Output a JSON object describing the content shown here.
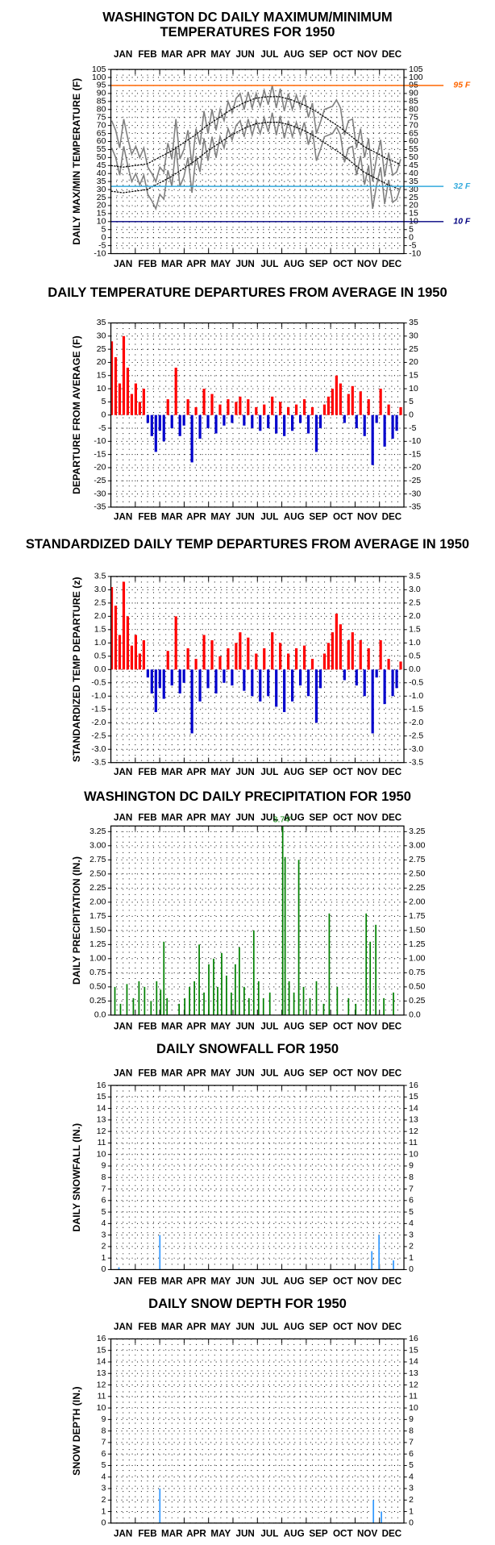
{
  "months": [
    "JAN",
    "FEB",
    "MAR",
    "APR",
    "MAY",
    "JUN",
    "JUL",
    "AUG",
    "SEP",
    "OCT",
    "NOV",
    "DEC"
  ],
  "chart_data": [
    {
      "type": "line",
      "title": [
        "WASHINGTON DC DAILY MAXIMUM/MINIMUM",
        "TEMPERATURES FOR 1950"
      ],
      "ylabel": "DAILY MAX/MIN TEMPERATURE (F)",
      "month_labels": [
        "top",
        "bottom"
      ],
      "xlim": [
        0,
        365
      ],
      "ylim": [
        -10,
        105
      ],
      "yticks": [
        -10,
        -5,
        0,
        5,
        10,
        15,
        20,
        25,
        30,
        35,
        40,
        45,
        50,
        55,
        60,
        65,
        70,
        75,
        80,
        85,
        90,
        95,
        100,
        105
      ],
      "ref_lines": [
        {
          "value": 95,
          "label": "95 F",
          "color": "#ff6600"
        },
        {
          "value": 32,
          "label": "32 F",
          "color": "#33aadd"
        },
        {
          "value": 10,
          "label": "10 F",
          "color": "#000080"
        }
      ],
      "series": [
        {
          "name": "max",
          "color": "#808080",
          "x": [
            1,
            6,
            11,
            16,
            21,
            26,
            31,
            36,
            41,
            46,
            51,
            56,
            61,
            66,
            71,
            76,
            81,
            86,
            91,
            96,
            101,
            106,
            111,
            116,
            121,
            126,
            131,
            136,
            141,
            146,
            151,
            156,
            161,
            166,
            171,
            176,
            181,
            186,
            191,
            196,
            201,
            206,
            211,
            216,
            221,
            226,
            231,
            236,
            241,
            246,
            251,
            256,
            261,
            266,
            271,
            276,
            281,
            286,
            291,
            296,
            301,
            306,
            311,
            316,
            321,
            326,
            331,
            336,
            341,
            346,
            351,
            356,
            361
          ],
          "values": [
            73,
            67,
            56,
            74,
            62,
            52,
            57,
            50,
            56,
            44,
            40,
            35,
            44,
            41,
            59,
            49,
            74,
            49,
            55,
            67,
            45,
            68,
            58,
            79,
            65,
            80,
            67,
            80,
            73,
            85,
            78,
            87,
            90,
            80,
            91,
            81,
            90,
            82,
            92,
            83,
            95,
            81,
            93,
            79,
            90,
            80,
            89,
            81,
            89,
            75,
            84,
            65,
            72,
            80,
            81,
            82,
            86,
            81,
            64,
            73,
            74,
            56,
            68,
            50,
            62,
            35,
            50,
            61,
            38,
            53,
            39,
            41,
            49
          ]
        },
        {
          "name": "min",
          "color": "#808080",
          "x": [
            1,
            6,
            11,
            16,
            21,
            26,
            31,
            36,
            41,
            46,
            51,
            56,
            61,
            66,
            71,
            76,
            81,
            86,
            91,
            96,
            101,
            106,
            111,
            116,
            121,
            126,
            131,
            136,
            141,
            146,
            151,
            156,
            161,
            166,
            171,
            176,
            181,
            186,
            191,
            196,
            201,
            206,
            211,
            216,
            221,
            226,
            231,
            236,
            241,
            246,
            251,
            256,
            261,
            266,
            271,
            276,
            281,
            286,
            291,
            296,
            301,
            306,
            311,
            316,
            321,
            326,
            331,
            336,
            341,
            346,
            351,
            356,
            361
          ],
          "values": [
            56,
            50,
            39,
            57,
            45,
            35,
            40,
            33,
            39,
            27,
            23,
            18,
            27,
            24,
            42,
            32,
            57,
            32,
            38,
            50,
            28,
            51,
            41,
            62,
            48,
            63,
            50,
            63,
            56,
            68,
            61,
            70,
            73,
            63,
            74,
            64,
            73,
            65,
            75,
            66,
            78,
            64,
            76,
            62,
            73,
            63,
            72,
            64,
            72,
            58,
            67,
            48,
            55,
            63,
            64,
            65,
            69,
            64,
            47,
            56,
            57,
            39,
            51,
            33,
            45,
            18,
            33,
            44,
            21,
            36,
            22,
            24,
            32
          ]
        },
        {
          "name": "normal max",
          "color": "#000000",
          "x": [
            0,
            15,
            30,
            45,
            60,
            75,
            90,
            105,
            120,
            135,
            150,
            165,
            180,
            195,
            210,
            225,
            240,
            255,
            270,
            285,
            300,
            315,
            330,
            345,
            360
          ],
          "values": [
            45,
            44,
            45,
            46,
            50,
            54,
            59,
            64,
            70,
            75,
            80,
            84,
            87,
            88,
            88,
            86,
            83,
            79,
            74,
            69,
            63,
            57,
            53,
            49,
            46
          ]
        },
        {
          "name": "normal min",
          "color": "#000000",
          "x": [
            0,
            15,
            30,
            45,
            60,
            75,
            90,
            105,
            120,
            135,
            150,
            165,
            180,
            195,
            210,
            225,
            240,
            255,
            270,
            285,
            300,
            315,
            330,
            345,
            360
          ],
          "values": [
            29,
            28,
            29,
            30,
            34,
            38,
            43,
            48,
            54,
            59,
            64,
            68,
            71,
            72,
            72,
            70,
            67,
            63,
            58,
            53,
            47,
            41,
            37,
            33,
            30
          ]
        }
      ]
    },
    {
      "type": "bar",
      "title": "DAILY TEMPERATURE DEPARTURES FROM AVERAGE IN 1950",
      "ylabel": "DEPARTURE FROM AVERAGE (F)",
      "month_labels": [
        "bottom"
      ],
      "xlim": [
        0,
        365
      ],
      "ylim": [
        -35,
        35
      ],
      "yticks": [
        -35,
        -30,
        -25,
        -20,
        -15,
        -10,
        -5,
        0,
        5,
        10,
        15,
        20,
        25,
        30,
        35
      ],
      "pos_color": "#ff0000",
      "neg_color": "#0000cc",
      "x": [
        1,
        6,
        11,
        16,
        21,
        26,
        31,
        36,
        41,
        46,
        51,
        56,
        61,
        66,
        71,
        76,
        81,
        86,
        91,
        96,
        101,
        106,
        111,
        116,
        121,
        126,
        131,
        136,
        141,
        146,
        151,
        156,
        161,
        166,
        171,
        176,
        181,
        186,
        191,
        196,
        201,
        206,
        211,
        216,
        221,
        226,
        231,
        236,
        241,
        246,
        251,
        256,
        261,
        266,
        271,
        276,
        281,
        286,
        291,
        296,
        301,
        306,
        311,
        316,
        321,
        326,
        331,
        336,
        341,
        346,
        351,
        356,
        361
      ],
      "values": [
        28,
        22,
        12,
        30,
        18,
        8,
        12,
        5,
        10,
        -3,
        -8,
        -14,
        -6,
        -10,
        6,
        -5,
        18,
        -8,
        -4,
        6,
        -18,
        3,
        -9,
        10,
        -5,
        8,
        -7,
        4,
        -4,
        6,
        -3,
        5,
        7,
        -4,
        6,
        -5,
        3,
        -6,
        4,
        -5,
        7,
        -7,
        5,
        -8,
        3,
        -6,
        4,
        -3,
        6,
        -7,
        3,
        -14,
        -5,
        4,
        7,
        10,
        15,
        12,
        -3,
        8,
        11,
        -5,
        9,
        -8,
        6,
        -19,
        -3,
        10,
        -12,
        4,
        -9,
        -6,
        3
      ]
    },
    {
      "type": "bar",
      "title": "STANDARDIZED DAILY TEMP DEPARTURES FROM AVERAGE IN 1950",
      "ylabel": "STANDARDIZED TEMP DEPARTURE (z)",
      "month_labels": [
        "bottom"
      ],
      "xlim": [
        0,
        365
      ],
      "ylim": [
        -3.5,
        3.5
      ],
      "yticks": [
        -3.5,
        {
          "value": -3,
          "label": "-3.0"
        },
        -2.5,
        {
          "value": -2,
          "label": "-2.0"
        },
        -1.5,
        {
          "value": -1,
          "label": "-1.0"
        },
        -0.5,
        {
          "value": 0,
          "label": "0.0"
        },
        0.5,
        {
          "value": 1,
          "label": "1.0"
        },
        1.5,
        {
          "value": 2,
          "label": "2.0"
        },
        2.5,
        {
          "value": 3,
          "label": "3.0"
        },
        3.5
      ],
      "pos_color": "#ff0000",
      "neg_color": "#0000cc",
      "x": [
        1,
        6,
        11,
        16,
        21,
        26,
        31,
        36,
        41,
        46,
        51,
        56,
        61,
        66,
        71,
        76,
        81,
        86,
        91,
        96,
        101,
        106,
        111,
        116,
        121,
        126,
        131,
        136,
        141,
        146,
        151,
        156,
        161,
        166,
        171,
        176,
        181,
        186,
        191,
        196,
        201,
        206,
        211,
        216,
        221,
        226,
        231,
        236,
        241,
        246,
        251,
        256,
        261,
        266,
        271,
        276,
        281,
        286,
        291,
        296,
        301,
        306,
        311,
        316,
        321,
        326,
        331,
        336,
        341,
        346,
        351,
        356,
        361
      ],
      "values": [
        3.1,
        2.4,
        1.3,
        3.3,
        2.0,
        0.9,
        1.3,
        0.6,
        1.1,
        -0.3,
        -0.9,
        -1.6,
        -0.7,
        -1.1,
        0.7,
        -0.6,
        2.0,
        -0.9,
        -0.5,
        0.8,
        -2.4,
        0.4,
        -1.2,
        1.3,
        -0.7,
        1.1,
        -0.9,
        0.5,
        -0.5,
        0.8,
        -0.6,
        1.0,
        1.4,
        -0.8,
        1.2,
        -1.0,
        0.6,
        -1.2,
        0.8,
        -1.0,
        1.4,
        -1.4,
        1.0,
        -1.6,
        0.6,
        -1.2,
        0.8,
        -0.6,
        0.9,
        -1.0,
        0.4,
        -2.0,
        -0.7,
        0.6,
        1.0,
        1.4,
        2.1,
        1.7,
        -0.4,
        1.1,
        1.4,
        -0.6,
        1.1,
        -1.0,
        0.8,
        -2.4,
        -0.3,
        1.1,
        -1.3,
        0.4,
        -1.0,
        -0.7,
        0.3
      ]
    },
    {
      "type": "bar",
      "title": "WASHINGTON DC DAILY PRECIPITATION FOR 1950",
      "ylabel": "DAILY PRECIPITATION (IN.)",
      "month_labels": [
        "top",
        "bottom"
      ],
      "color": "#008000",
      "xlim": [
        0,
        365
      ],
      "ylim": [
        0,
        3.35
      ],
      "yticks": [
        {
          "value": 0,
          "label": "0.0"
        },
        0.25,
        {
          "value": 0.5,
          "label": "0.50"
        },
        0.75,
        {
          "value": 1,
          "label": "1.00"
        },
        1.25,
        {
          "value": 1.5,
          "label": "1.50"
        },
        1.75,
        {
          "value": 2,
          "label": "2.00"
        },
        2.25,
        {
          "value": 2.5,
          "label": "2.50"
        },
        2.75,
        {
          "value": 3,
          "label": "3.00"
        },
        3.25
      ],
      "x": [
        5,
        12,
        20,
        28,
        35,
        42,
        50,
        57,
        62,
        66,
        70,
        85,
        92,
        98,
        104,
        110,
        116,
        122,
        128,
        133,
        138,
        144,
        150,
        155,
        160,
        166,
        172,
        178,
        184,
        190,
        198,
        214,
        217,
        222,
        228,
        234,
        240,
        248,
        256,
        265,
        272,
        282,
        296,
        305,
        318,
        323,
        330,
        340,
        352
      ],
      "values": [
        0.5,
        0.2,
        0.55,
        0.3,
        0.6,
        0.5,
        0.25,
        0.6,
        0.45,
        1.3,
        0.3,
        0.2,
        0.3,
        0.5,
        0.6,
        1.25,
        0.4,
        0.9,
        1.0,
        0.5,
        1.1,
        0.7,
        0.4,
        0.9,
        1.2,
        0.5,
        0.3,
        1.5,
        0.6,
        0.3,
        0.4,
        3.74,
        2.8,
        0.6,
        0.4,
        2.75,
        0.5,
        0.3,
        0.6,
        0.2,
        1.8,
        0.5,
        0.3,
        0.2,
        1.8,
        1.3,
        1.6,
        0.3,
        0.4
      ],
      "value_labels": [
        null,
        null,
        null,
        null,
        null,
        null,
        null,
        null,
        null,
        null,
        null,
        null,
        null,
        null,
        null,
        null,
        null,
        null,
        null,
        null,
        null,
        null,
        null,
        null,
        null,
        null,
        null,
        null,
        null,
        null,
        null,
        "3.74\"",
        null,
        null,
        null,
        null,
        null,
        null,
        null,
        null,
        null,
        null,
        null,
        null,
        null,
        null,
        null,
        null,
        null
      ]
    },
    {
      "type": "bar",
      "title": "DAILY SNOWFALL FOR 1950",
      "ylabel": "DAILY SNOWFALL (IN.)",
      "month_labels": [
        "top",
        "bottom"
      ],
      "color": "#3399ff",
      "xlim": [
        0,
        365
      ],
      "ylim": [
        0,
        16
      ],
      "yticks": [
        0,
        1,
        2,
        3,
        4,
        5,
        6,
        7,
        8,
        9,
        10,
        11,
        12,
        13,
        14,
        15,
        16
      ],
      "x": [
        10,
        61,
        325,
        334,
        352
      ],
      "values": [
        0.2,
        3,
        1.6,
        3,
        0.8
      ]
    },
    {
      "type": "bar",
      "title": "DAILY SNOW DEPTH FOR 1950",
      "ylabel": "SNOW DEPTH (IN.)",
      "month_labels": [
        "top",
        "bottom"
      ],
      "color": "#3399ff",
      "xlim": [
        0,
        365
      ],
      "ylim": [
        0,
        16
      ],
      "yticks": [
        0,
        1,
        2,
        3,
        4,
        5,
        6,
        7,
        8,
        9,
        10,
        11,
        12,
        13,
        14,
        15,
        16
      ],
      "x": [
        61,
        327,
        337
      ],
      "values": [
        3,
        2,
        1
      ]
    }
  ]
}
